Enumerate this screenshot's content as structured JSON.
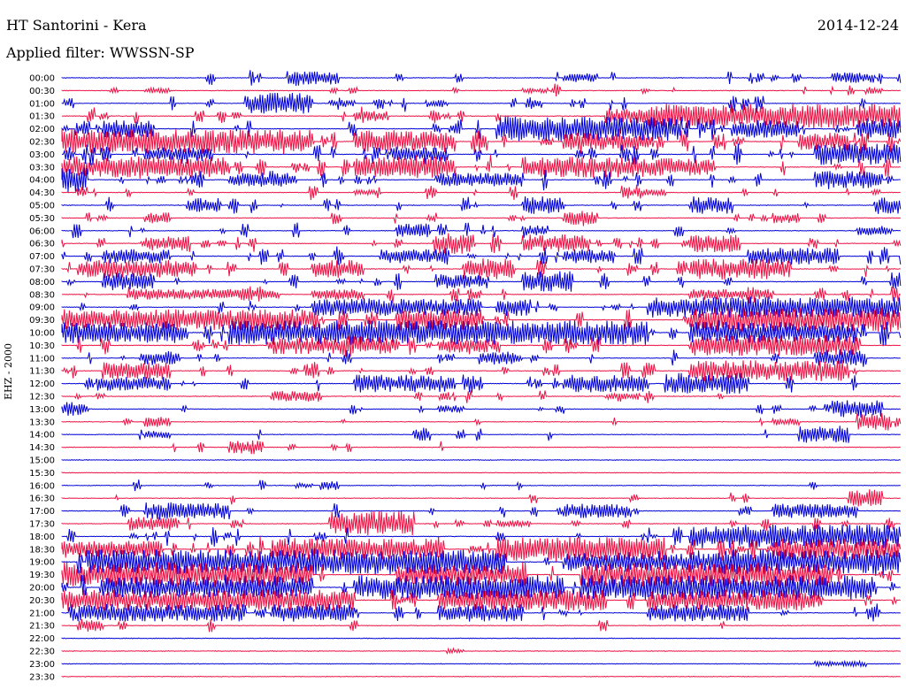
{
  "header": {
    "station": "HT Santorini - Kera",
    "date": "2014-12-24",
    "filter": "Applied filter: WWSSN-SP",
    "channel": "EHZ - 2000"
  },
  "chart_data": {
    "type": "line",
    "title": "HT Santorini - Kera",
    "xlabel": "",
    "ylabel": "EHZ - 2000",
    "colors": {
      "even_trace": "#0000d8",
      "odd_trace": "#ee1144"
    },
    "tick_labels": [
      "00:00",
      "00:30",
      "01:00",
      "01:30",
      "02:00",
      "02:30",
      "03:00",
      "03:30",
      "04:00",
      "04:30",
      "05:00",
      "05:30",
      "06:00",
      "06:30",
      "07:00",
      "07:30",
      "08:00",
      "08:30",
      "09:00",
      "09:30",
      "10:00",
      "10:30",
      "11:00",
      "11:30",
      "12:00",
      "12:30",
      "13:00",
      "13:30",
      "14:00",
      "14:30",
      "15:00",
      "15:30",
      "16:00",
      "16:30",
      "17:00",
      "17:30",
      "18:00",
      "18:30",
      "19:00",
      "19:30",
      "20:00",
      "20:30",
      "21:00",
      "21:30",
      "22:00",
      "22:30",
      "23:00",
      "23:30"
    ],
    "activity": [
      3,
      2,
      4,
      5,
      7,
      9,
      7,
      7,
      6,
      3,
      3,
      3,
      3,
      5,
      5,
      5,
      4,
      4,
      5,
      7,
      9,
      6,
      3,
      4,
      4,
      2,
      2,
      1,
      1,
      1,
      0,
      0,
      1,
      1,
      2,
      3,
      5,
      8,
      9,
      8,
      8,
      6,
      4,
      1,
      0,
      0,
      0,
      0
    ],
    "series": [
      {
        "name": "",
        "bursts": [
          [
            27,
            6,
            8
          ],
          [
            60,
            4,
            5
          ],
          [
            92,
            5,
            6
          ],
          [
            108,
            2,
            3
          ]
        ]
      },
      {
        "name": "",
        "bursts": [
          [
            10,
            3,
            3
          ],
          [
            55,
            3,
            3
          ],
          [
            96,
            2,
            4
          ]
        ]
      },
      {
        "name": "",
        "bursts": [
          [
            22,
            8,
            12
          ],
          [
            32,
            3,
            4
          ],
          [
            44,
            2,
            3
          ]
        ]
      },
      {
        "name": "",
        "bursts": [
          [
            35,
            4,
            6
          ],
          [
            65,
            5,
            8
          ],
          [
            70,
            45,
            14
          ]
        ]
      },
      {
        "name": "",
        "bursts": [
          [
            5,
            6,
            10
          ],
          [
            52,
            22,
            14
          ],
          [
            80,
            8,
            10
          ],
          [
            96,
            8,
            12
          ]
        ]
      },
      {
        "name": "",
        "bursts": [
          [
            0,
            30,
            14
          ],
          [
            35,
            12,
            12
          ],
          [
            60,
            10,
            10
          ],
          [
            88,
            6,
            10
          ]
        ]
      },
      {
        "name": "",
        "bursts": [
          [
            10,
            8,
            8
          ],
          [
            40,
            6,
            8
          ],
          [
            90,
            10,
            12
          ]
        ]
      },
      {
        "name": "",
        "bursts": [
          [
            0,
            20,
            12
          ],
          [
            35,
            12,
            12
          ],
          [
            55,
            15,
            12
          ],
          [
            70,
            8,
            10
          ]
        ]
      },
      {
        "name": "",
        "bursts": [
          [
            0,
            3,
            14
          ],
          [
            20,
            8,
            8
          ],
          [
            45,
            10,
            8
          ],
          [
            90,
            8,
            10
          ]
        ]
      },
      {
        "name": "",
        "bursts": [
          [
            35,
            3,
            3
          ],
          [
            68,
            4,
            4
          ]
        ]
      },
      {
        "name": "",
        "bursts": [
          [
            15,
            4,
            8
          ],
          [
            55,
            5,
            10
          ],
          [
            75,
            5,
            10
          ],
          [
            97,
            4,
            10
          ]
        ]
      },
      {
        "name": "",
        "bursts": [
          [
            10,
            3,
            6
          ],
          [
            60,
            4,
            8
          ],
          [
            85,
            3,
            6
          ]
        ]
      },
      {
        "name": "",
        "bursts": [
          [
            40,
            4,
            8
          ],
          [
            55,
            3,
            6
          ],
          [
            95,
            3,
            6
          ]
        ]
      },
      {
        "name": "",
        "bursts": [
          [
            10,
            5,
            8
          ],
          [
            45,
            4,
            12
          ],
          [
            55,
            8,
            10
          ],
          [
            75,
            6,
            10
          ]
        ]
      },
      {
        "name": "",
        "bursts": [
          [
            5,
            8,
            8
          ],
          [
            38,
            8,
            8
          ],
          [
            60,
            6,
            8
          ],
          [
            82,
            10,
            10
          ]
        ]
      },
      {
        "name": "",
        "bursts": [
          [
            2,
            14,
            10
          ],
          [
            30,
            6,
            10
          ],
          [
            48,
            6,
            12
          ],
          [
            75,
            12,
            12
          ]
        ]
      },
      {
        "name": "",
        "bursts": [
          [
            5,
            6,
            10
          ],
          [
            45,
            6,
            8
          ],
          [
            55,
            6,
            12
          ]
        ]
      },
      {
        "name": "",
        "bursts": [
          [
            8,
            18,
            6
          ],
          [
            30,
            6,
            6
          ],
          [
            75,
            10,
            6
          ]
        ]
      },
      {
        "name": "",
        "bursts": [
          [
            30,
            20,
            10
          ],
          [
            52,
            4,
            10
          ],
          [
            70,
            30,
            12
          ]
        ]
      },
      {
        "name": "",
        "bursts": [
          [
            0,
            30,
            12
          ],
          [
            40,
            10,
            12
          ],
          [
            75,
            30,
            14
          ]
        ]
      },
      {
        "name": "",
        "bursts": [
          [
            0,
            15,
            12
          ],
          [
            20,
            50,
            14
          ],
          [
            75,
            20,
            12
          ]
        ]
      },
      {
        "name": "",
        "bursts": [
          [
            25,
            15,
            10
          ],
          [
            45,
            6,
            8
          ],
          [
            75,
            20,
            12
          ]
        ]
      },
      {
        "name": "",
        "bursts": [
          [
            10,
            4,
            8
          ],
          [
            50,
            4,
            8
          ],
          [
            90,
            6,
            10
          ]
        ]
      },
      {
        "name": "",
        "bursts": [
          [
            5,
            8,
            10
          ],
          [
            75,
            15,
            12
          ],
          [
            88,
            6,
            12
          ]
        ]
      },
      {
        "name": "",
        "bursts": [
          [
            5,
            8,
            8
          ],
          [
            35,
            12,
            10
          ],
          [
            60,
            10,
            10
          ],
          [
            72,
            10,
            12
          ]
        ]
      },
      {
        "name": "",
        "bursts": [
          [
            25,
            6,
            6
          ],
          [
            65,
            4,
            4
          ]
        ]
      },
      {
        "name": "",
        "bursts": [
          [
            0,
            3,
            8
          ],
          [
            45,
            3,
            4
          ],
          [
            92,
            6,
            10
          ]
        ]
      },
      {
        "name": "",
        "bursts": [
          [
            10,
            3,
            6
          ],
          [
            85,
            3,
            4
          ],
          [
            95,
            4,
            10
          ]
        ]
      },
      {
        "name": "",
        "bursts": [
          [
            10,
            3,
            4
          ],
          [
            42,
            2,
            8
          ],
          [
            88,
            6,
            10
          ]
        ]
      },
      {
        "name": "",
        "bursts": [
          [
            20,
            4,
            8
          ]
        ]
      },
      {
        "name": "",
        "bursts": []
      },
      {
        "name": "",
        "bursts": []
      },
      {
        "name": "",
        "bursts": [
          [
            28,
            2,
            3
          ],
          [
            31,
            2,
            6
          ]
        ]
      },
      {
        "name": "",
        "bursts": [
          [
            94,
            4,
            10
          ]
        ]
      },
      {
        "name": "",
        "bursts": [
          [
            10,
            10,
            10
          ],
          [
            60,
            8,
            8
          ],
          [
            85,
            10,
            8
          ]
        ]
      },
      {
        "name": "",
        "bursts": [
          [
            8,
            6,
            8
          ],
          [
            32,
            10,
            14
          ],
          [
            52,
            4,
            4
          ]
        ]
      },
      {
        "name": "",
        "bursts": [
          [
            75,
            25,
            14
          ]
        ]
      },
      {
        "name": "",
        "bursts": [
          [
            0,
            12,
            10
          ],
          [
            25,
            20,
            12
          ],
          [
            52,
            20,
            14
          ],
          [
            85,
            15,
            12
          ]
        ]
      },
      {
        "name": "",
        "bursts": [
          [
            3,
            50,
            14
          ],
          [
            60,
            20,
            10
          ],
          [
            78,
            22,
            14
          ]
        ]
      },
      {
        "name": "",
        "bursts": [
          [
            0,
            30,
            14
          ],
          [
            40,
            15,
            12
          ],
          [
            62,
            30,
            14
          ]
        ]
      },
      {
        "name": "",
        "bursts": [
          [
            5,
            25,
            12
          ],
          [
            35,
            25,
            14
          ],
          [
            62,
            35,
            14
          ]
        ]
      },
      {
        "name": "",
        "bursts": [
          [
            0,
            35,
            12
          ],
          [
            45,
            20,
            12
          ],
          [
            70,
            20,
            12
          ]
        ]
      },
      {
        "name": "",
        "bursts": [
          [
            2,
            20,
            10
          ],
          [
            25,
            10,
            10
          ],
          [
            45,
            10,
            10
          ],
          [
            70,
            12,
            10
          ]
        ]
      },
      {
        "name": "",
        "bursts": [
          [
            2,
            3,
            6
          ]
        ]
      },
      {
        "name": "",
        "bursts": []
      },
      {
        "name": "",
        "bursts": [
          [
            46,
            2,
            3
          ]
        ]
      },
      {
        "name": "",
        "bursts": [
          [
            90,
            6,
            3
          ]
        ]
      },
      {
        "name": "",
        "bursts": []
      }
    ]
  }
}
